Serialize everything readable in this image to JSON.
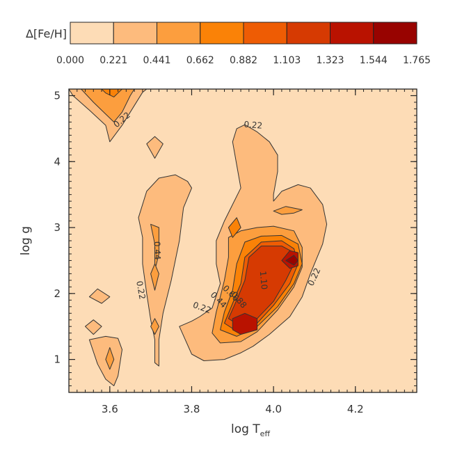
{
  "chart_data": {
    "type": "contour",
    "colorbar": {
      "label": "Δ[Fe/H]",
      "ticks": [
        "0.000",
        "0.221",
        "0.441",
        "0.662",
        "0.882",
        "1.103",
        "1.323",
        "1.544",
        "1.765"
      ],
      "colors": [
        "#fddcb6",
        "#fdbb7d",
        "#fc9e3e",
        "#fa8207",
        "#ee5c04",
        "#d63a02",
        "#b91200",
        "#980300"
      ]
    },
    "xlabel": "log T",
    "xlabel_sub": "eff",
    "ylabel": "log g",
    "xlim": [
      3.5,
      4.35
    ],
    "ylim": [
      0.5,
      5.1
    ],
    "xticks": [
      {
        "value": 3.6,
        "label": "3.6"
      },
      {
        "value": 3.8,
        "label": "3.8"
      },
      {
        "value": 4.0,
        "label": "4.0"
      },
      {
        "value": 4.2,
        "label": "4.2"
      }
    ],
    "yticks": [
      {
        "value": 1,
        "label": "1"
      },
      {
        "value": 2,
        "label": "2"
      },
      {
        "value": 3,
        "label": "3"
      },
      {
        "value": 4,
        "label": "4"
      },
      {
        "value": 5,
        "label": "5"
      }
    ],
    "regions": [
      {
        "level": 1,
        "points": [
          [
            3.5,
            5.1
          ],
          [
            3.51,
            5.0
          ],
          [
            3.55,
            4.78
          ],
          [
            3.59,
            4.55
          ],
          [
            3.6,
            4.3
          ],
          [
            3.63,
            4.55
          ],
          [
            3.66,
            4.85
          ],
          [
            3.68,
            5.05
          ],
          [
            3.69,
            5.1
          ]
        ]
      },
      {
        "level": 2,
        "points": [
          [
            3.53,
            5.1
          ],
          [
            3.56,
            4.9
          ],
          [
            3.59,
            4.72
          ],
          [
            3.61,
            4.6
          ],
          [
            3.63,
            4.75
          ],
          [
            3.65,
            5.0
          ],
          [
            3.66,
            5.1
          ]
        ]
      },
      {
        "level": 3,
        "points": [
          [
            3.58,
            5.1
          ],
          [
            3.59,
            5.04
          ],
          [
            3.61,
            4.98
          ],
          [
            3.62,
            5.04
          ],
          [
            3.63,
            5.1
          ]
        ]
      },
      {
        "level": 1,
        "points": [
          [
            3.69,
            4.27
          ],
          [
            3.71,
            4.05
          ],
          [
            3.73,
            4.27
          ],
          [
            3.71,
            4.38
          ]
        ]
      },
      {
        "level": 1,
        "points": [
          [
            3.54,
            1.5
          ],
          [
            3.56,
            1.38
          ],
          [
            3.58,
            1.5
          ],
          [
            3.56,
            1.6
          ]
        ]
      },
      {
        "level": 1,
        "points": [
          [
            3.55,
            1.95
          ],
          [
            3.58,
            1.85
          ],
          [
            3.6,
            1.95
          ],
          [
            3.57,
            2.07
          ]
        ]
      },
      {
        "level": 1,
        "points": [
          [
            3.55,
            1.3
          ],
          [
            3.57,
            0.93
          ],
          [
            3.59,
            0.7
          ],
          [
            3.61,
            0.6
          ],
          [
            3.62,
            0.75
          ],
          [
            3.63,
            1.15
          ],
          [
            3.62,
            1.32
          ],
          [
            3.59,
            1.35
          ]
        ]
      },
      {
        "level": 2,
        "points": [
          [
            3.59,
            1.0
          ],
          [
            3.6,
            0.85
          ],
          [
            3.61,
            1.0
          ],
          [
            3.6,
            1.18
          ]
        ]
      },
      {
        "level": 1,
        "points": [
          [
            3.67,
            3.15
          ],
          [
            3.68,
            2.85
          ],
          [
            3.68,
            2.45
          ],
          [
            3.69,
            2.0
          ],
          [
            3.7,
            1.6
          ],
          [
            3.71,
            1.3
          ],
          [
            3.71,
            0.95
          ],
          [
            3.72,
            0.9
          ],
          [
            3.72,
            1.3
          ],
          [
            3.73,
            1.7
          ],
          [
            3.75,
            2.2
          ],
          [
            3.77,
            2.8
          ],
          [
            3.78,
            3.3
          ],
          [
            3.8,
            3.6
          ],
          [
            3.79,
            3.7
          ],
          [
            3.76,
            3.8
          ],
          [
            3.72,
            3.75
          ],
          [
            3.69,
            3.55
          ]
        ]
      },
      {
        "level": 2,
        "points": [
          [
            3.7,
            3.05
          ],
          [
            3.71,
            2.75
          ],
          [
            3.71,
            2.35
          ],
          [
            3.72,
            2.6
          ],
          [
            3.72,
            3.0
          ]
        ]
      },
      {
        "level": 2,
        "points": [
          [
            3.7,
            2.3
          ],
          [
            3.71,
            2.05
          ],
          [
            3.72,
            2.3
          ],
          [
            3.71,
            2.45
          ]
        ]
      },
      {
        "level": 2,
        "points": [
          [
            3.7,
            1.5
          ],
          [
            3.71,
            1.38
          ],
          [
            3.72,
            1.5
          ],
          [
            3.71,
            1.62
          ]
        ]
      },
      {
        "level": 1,
        "points": [
          [
            3.77,
            1.5
          ],
          [
            3.8,
            1.58
          ],
          [
            3.82,
            1.65
          ],
          [
            3.85,
            1.78
          ],
          [
            3.87,
            2.15
          ],
          [
            3.86,
            2.45
          ],
          [
            3.86,
            2.8
          ],
          [
            3.88,
            3.1
          ],
          [
            3.9,
            3.35
          ],
          [
            3.92,
            3.6
          ],
          [
            3.91,
            3.95
          ],
          [
            3.9,
            4.3
          ],
          [
            3.91,
            4.5
          ],
          [
            3.93,
            4.56
          ],
          [
            3.96,
            4.45
          ],
          [
            3.99,
            4.3
          ],
          [
            4.01,
            4.1
          ],
          [
            4.01,
            3.85
          ],
          [
            4.0,
            3.5
          ],
          [
            4.0,
            3.4
          ],
          [
            4.02,
            3.55
          ],
          [
            4.06,
            3.65
          ],
          [
            4.09,
            3.6
          ],
          [
            4.12,
            3.35
          ],
          [
            4.13,
            3.05
          ],
          [
            4.12,
            2.75
          ],
          [
            4.09,
            2.3
          ],
          [
            4.07,
            1.95
          ],
          [
            4.04,
            1.65
          ],
          [
            3.99,
            1.38
          ],
          [
            3.95,
            1.2
          ],
          [
            3.92,
            1.1
          ],
          [
            3.88,
            1.0
          ],
          [
            3.83,
            0.98
          ],
          [
            3.8,
            1.08
          ]
        ]
      },
      {
        "level": 2,
        "points": [
          [
            3.85,
            1.4
          ],
          [
            3.86,
            1.72
          ],
          [
            3.87,
            1.95
          ],
          [
            3.88,
            2.2
          ],
          [
            3.89,
            2.55
          ],
          [
            3.89,
            2.85
          ],
          [
            3.92,
            2.95
          ],
          [
            3.96,
            3.0
          ],
          [
            4.0,
            3.02
          ],
          [
            4.05,
            2.95
          ],
          [
            4.07,
            2.7
          ],
          [
            4.07,
            2.4
          ],
          [
            4.05,
            2.1
          ],
          [
            4.01,
            1.75
          ],
          [
            3.96,
            1.42
          ],
          [
            3.92,
            1.27
          ],
          [
            3.87,
            1.25
          ]
        ]
      },
      {
        "level": 2,
        "points": [
          [
            4.0,
            3.25
          ],
          [
            4.02,
            3.2
          ],
          [
            4.05,
            3.22
          ],
          [
            4.07,
            3.27
          ],
          [
            4.03,
            3.32
          ]
        ]
      },
      {
        "level": 3,
        "points": [
          [
            3.87,
            1.45
          ],
          [
            3.88,
            1.72
          ],
          [
            3.9,
            2.05
          ],
          [
            3.91,
            2.45
          ],
          [
            3.93,
            2.78
          ],
          [
            3.97,
            2.87
          ],
          [
            4.02,
            2.88
          ],
          [
            4.06,
            2.75
          ],
          [
            4.07,
            2.45
          ],
          [
            4.05,
            2.15
          ],
          [
            4.01,
            1.8
          ],
          [
            3.96,
            1.5
          ],
          [
            3.91,
            1.35
          ]
        ]
      },
      {
        "level": 3,
        "points": [
          [
            3.89,
            3.0
          ],
          [
            3.9,
            2.85
          ],
          [
            3.92,
            3.0
          ],
          [
            3.91,
            3.15
          ]
        ]
      },
      {
        "level": 4,
        "points": [
          [
            3.88,
            1.55
          ],
          [
            3.9,
            1.85
          ],
          [
            3.92,
            2.15
          ],
          [
            3.93,
            2.55
          ],
          [
            3.97,
            2.78
          ],
          [
            4.02,
            2.8
          ],
          [
            4.05,
            2.68
          ],
          [
            4.06,
            2.45
          ],
          [
            4.04,
            2.15
          ],
          [
            4.0,
            1.82
          ],
          [
            3.96,
            1.55
          ],
          [
            3.91,
            1.43
          ]
        ]
      },
      {
        "level": 5,
        "points": [
          [
            3.89,
            1.62
          ],
          [
            3.91,
            1.9
          ],
          [
            3.93,
            2.2
          ],
          [
            3.94,
            2.55
          ],
          [
            3.97,
            2.72
          ],
          [
            4.02,
            2.72
          ],
          [
            4.05,
            2.62
          ],
          [
            4.05,
            2.45
          ],
          [
            4.03,
            2.2
          ],
          [
            4.0,
            1.88
          ],
          [
            3.96,
            1.62
          ],
          [
            3.92,
            1.5
          ]
        ]
      },
      {
        "level": 6,
        "points": [
          [
            3.9,
            1.45
          ],
          [
            3.92,
            1.38
          ],
          [
            3.96,
            1.45
          ],
          [
            3.96,
            1.62
          ],
          [
            3.93,
            1.7
          ],
          [
            3.9,
            1.62
          ]
        ]
      },
      {
        "level": 6,
        "points": [
          [
            4.02,
            2.5
          ],
          [
            4.04,
            2.38
          ],
          [
            4.06,
            2.42
          ],
          [
            4.06,
            2.62
          ],
          [
            4.04,
            2.65
          ]
        ]
      },
      {
        "level": 7,
        "points": [
          [
            4.03,
            2.5
          ],
          [
            4.05,
            2.43
          ],
          [
            4.06,
            2.5
          ],
          [
            4.05,
            2.58
          ]
        ]
      }
    ],
    "contour_labels": [
      {
        "text": "0.22",
        "x": 3.63,
        "y": 4.63,
        "angle": -40
      },
      {
        "text": "0.22",
        "x": 3.95,
        "y": 4.55,
        "angle": 5
      },
      {
        "text": "0.44",
        "x": 3.715,
        "y": 2.65,
        "angle": 88
      },
      {
        "text": "0.22",
        "x": 3.675,
        "y": 2.05,
        "angle": 80
      },
      {
        "text": "0.22",
        "x": 4.1,
        "y": 2.25,
        "angle": -65
      },
      {
        "text": "0.22",
        "x": 3.825,
        "y": 1.78,
        "angle": 20
      },
      {
        "text": "0.44",
        "x": 3.865,
        "y": 1.9,
        "angle": 45
      },
      {
        "text": "0.66",
        "x": 3.895,
        "y": 2.0,
        "angle": 45
      },
      {
        "text": "0.88",
        "x": 3.915,
        "y": 1.9,
        "angle": 50
      },
      {
        "text": "1.10",
        "x": 3.975,
        "y": 2.2,
        "angle": 85
      }
    ]
  }
}
